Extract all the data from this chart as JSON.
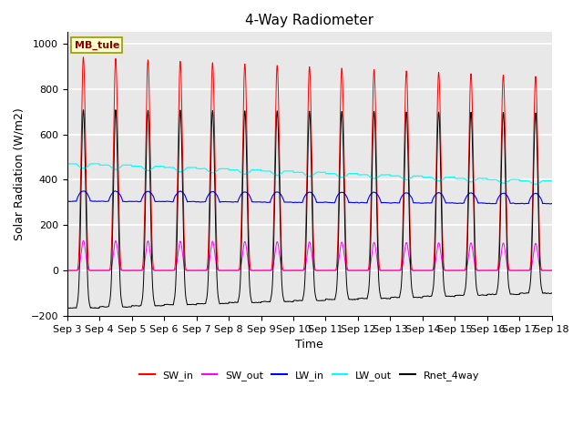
{
  "title": "4-Way Radiometer",
  "xlabel": "Time",
  "ylabel": "Solar Radiation (W/m2)",
  "station_label": "MB_tule",
  "ylim": [
    -200,
    1050
  ],
  "colors": {
    "SW_in": "#ff0000",
    "SW_out": "#ff00ff",
    "LW_in": "#0000ff",
    "LW_out": "#00ffff",
    "Rnet_4way": "#000000"
  },
  "background_color": "#e8e8e8",
  "grid_color": "#ffffff",
  "title_fontsize": 11,
  "label_fontsize": 9,
  "tick_fontsize": 8
}
